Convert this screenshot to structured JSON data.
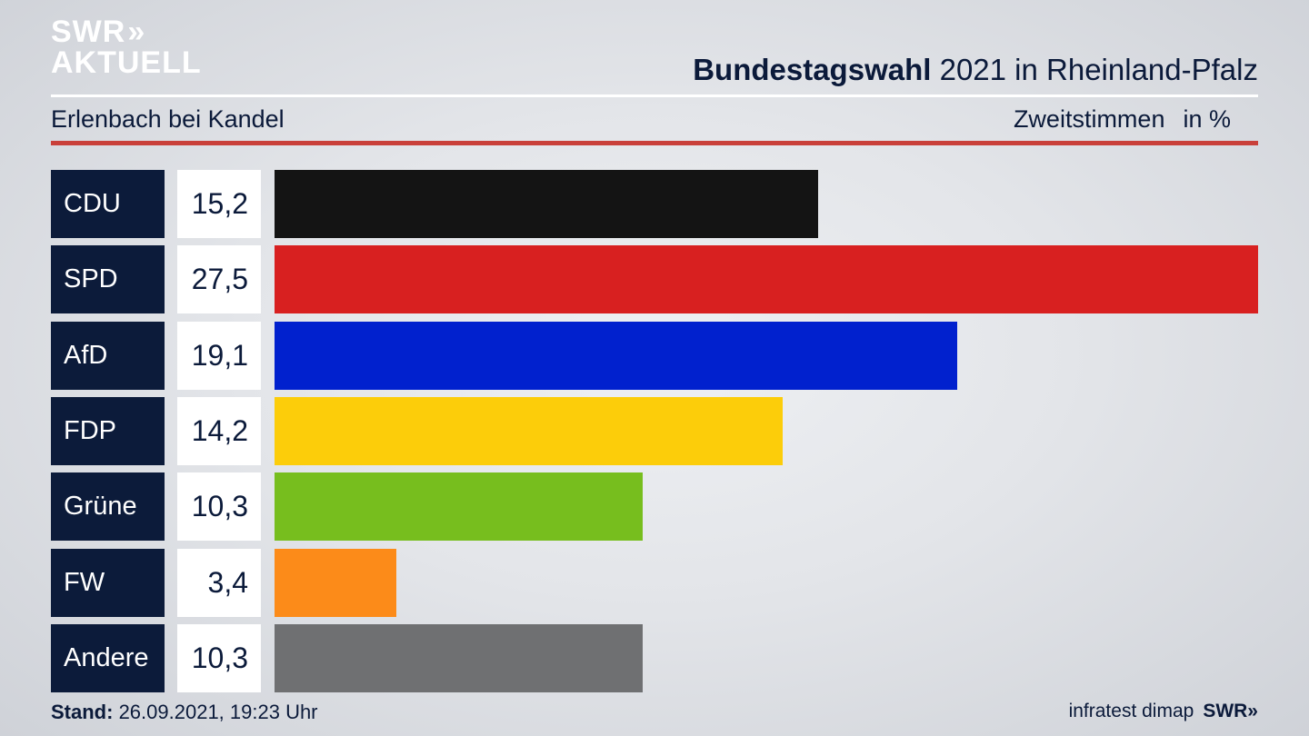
{
  "logo": {
    "line1": "SWR",
    "chevrons": "»",
    "line2": "AKTUELL"
  },
  "header": {
    "title_bold": "Bundestagswahl",
    "title_rest": " 2021 in Rheinland-Pfalz",
    "location": "Erlenbach bei Kandel",
    "metric": "Zweitstimmen",
    "unit": "in %"
  },
  "chart_data": {
    "type": "bar",
    "orientation": "horizontal",
    "title": "Bundestagswahl 2021 in Rheinland-Pfalz",
    "categories": [
      "CDU",
      "SPD",
      "AfD",
      "FDP",
      "Grüne",
      "FW",
      "Andere"
    ],
    "values": [
      15.2,
      27.5,
      19.1,
      14.2,
      10.3,
      3.4,
      10.3
    ],
    "value_labels": [
      "15,2",
      "27,5",
      "19,1",
      "14,2",
      "10,3",
      "3,4",
      "10,3"
    ],
    "colors": [
      "#141414",
      "#d82020",
      "#0121ce",
      "#fccd0a",
      "#77be1e",
      "#fc8b19",
      "#6f7072"
    ],
    "xlim": [
      0,
      27.5
    ]
  },
  "footer": {
    "stand_label": "Stand:",
    "stand_value": " 26.09.2021, 19:23 Uhr",
    "source": "infratest dimap",
    "broadcaster": "SWR»"
  }
}
